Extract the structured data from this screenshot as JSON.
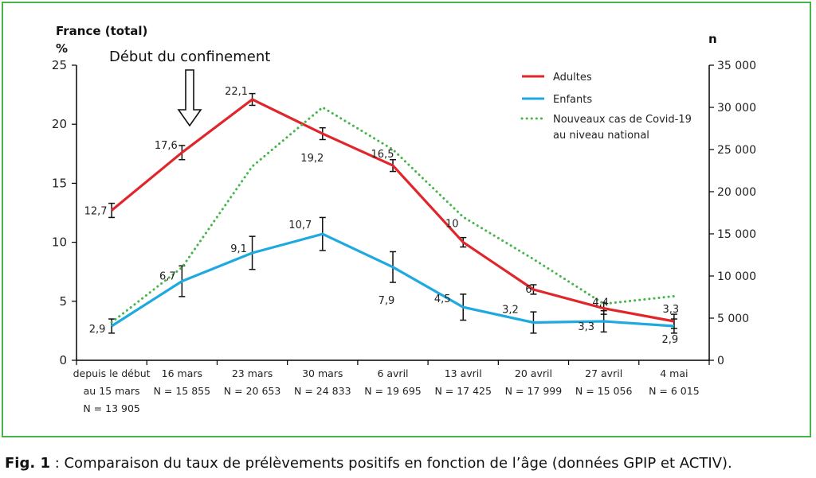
{
  "chart_data": {
    "type": "line",
    "title": "France (total)",
    "ylabel": "%",
    "ylabel_right": "n",
    "ylim": [
      0,
      25
    ],
    "ylim_right": [
      0,
      35000
    ],
    "yticks": [
      "0",
      "5",
      "10",
      "15",
      "20",
      "25"
    ],
    "yticks_right": [
      "0",
      "5 000",
      "10 000",
      "15 000",
      "20 000",
      "25 000",
      "30 000",
      "35 000"
    ],
    "categories": [
      [
        "depuis le début",
        "au 15 mars",
        "N = 13 905"
      ],
      [
        "16 mars",
        "N = 15 855"
      ],
      [
        "23 mars",
        "N = 20 653"
      ],
      [
        "30 mars",
        "N = 24 833"
      ],
      [
        "6 avril",
        "N = 19 695"
      ],
      [
        "13 avril",
        "N = 17 425"
      ],
      [
        "20 avril",
        "N = 17 999"
      ],
      [
        "27 avril",
        "N = 15 056"
      ],
      [
        "4 mai",
        "N = 6 015"
      ]
    ],
    "series": [
      {
        "name": "Adultes",
        "color": "#e0262b",
        "values": [
          12.7,
          17.6,
          22.1,
          19.2,
          16.5,
          10,
          6,
          4.4,
          3.3
        ],
        "errors": [
          0.6,
          0.6,
          0.5,
          0.5,
          0.5,
          0.4,
          0.4,
          0.5,
          0.6
        ],
        "labels": [
          "12,7",
          "17,6",
          "22,1",
          "19,2",
          "16,5",
          "10",
          "6",
          "4,4",
          "3,3"
        ]
      },
      {
        "name": "Enfants",
        "color": "#1ea9e1",
        "values": [
          2.9,
          6.7,
          9.1,
          10.7,
          7.9,
          4.5,
          3.2,
          3.3,
          2.9
        ],
        "errors": [
          0.6,
          1.3,
          1.4,
          1.4,
          1.3,
          1.1,
          0.9,
          0.9,
          0.6
        ],
        "labels": [
          "2,9",
          "6,7",
          "9,1",
          "10,7",
          "7,9",
          "4,5",
          "3,2",
          "3,3",
          "2,9"
        ]
      },
      {
        "name": "Nouveaux cas de Covid-19 au niveau national",
        "name_lines": [
          "Nouveaux cas de Covid-19",
          "au niveau national"
        ],
        "axis": "right",
        "color": "#45b549",
        "style": "dotted",
        "values": [
          4500,
          11000,
          23000,
          30000,
          25000,
          17000,
          12000,
          6700,
          7600
        ]
      }
    ],
    "annotation": "Début du confinement",
    "legend_position": "top-right"
  },
  "caption": {
    "label": "Fig. 1",
    "text": " : Comparaison du taux de prélèvements positifs en fonction de l’âge (données GPIP et ACTIV)."
  }
}
